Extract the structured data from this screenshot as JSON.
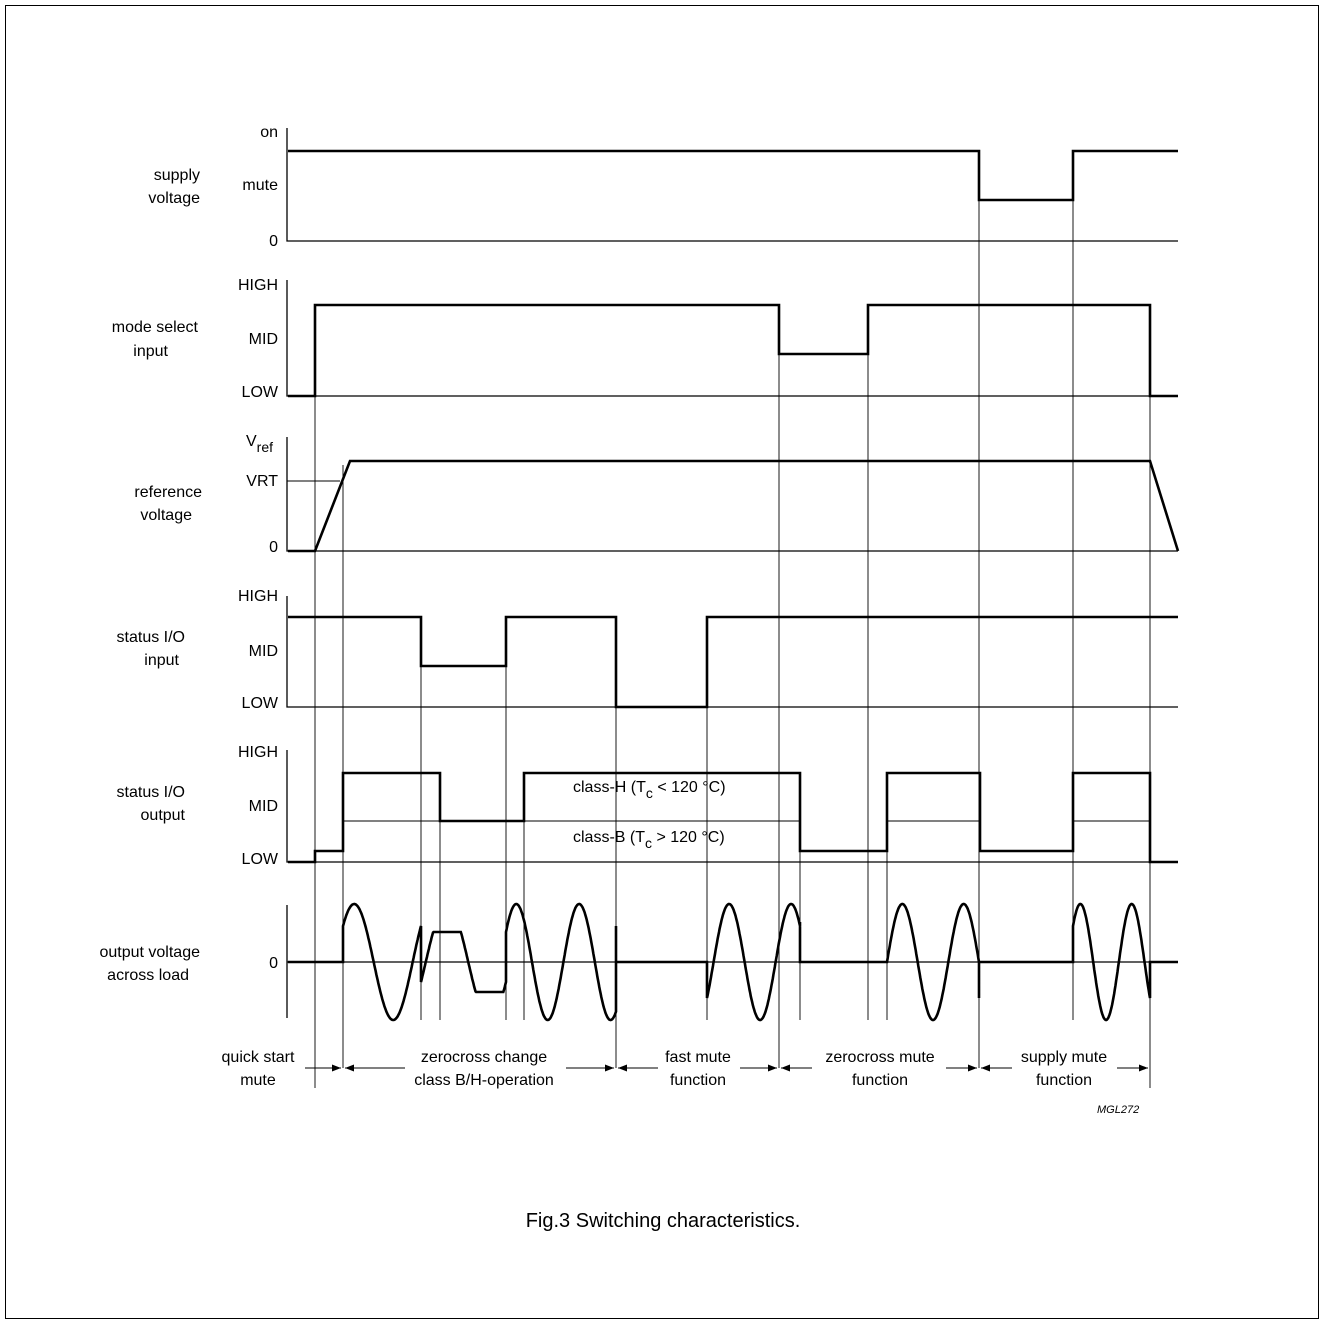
{
  "figure": {
    "caption": "Fig.3  Switching characteristics.",
    "code": "MGL272"
  },
  "rows": {
    "supply": {
      "label_lines": [
        "supply",
        "voltage"
      ],
      "levels": {
        "on": "on",
        "mute": "mute",
        "zero": "0"
      }
    },
    "mode": {
      "label_lines": [
        "mode select",
        "input"
      ],
      "levels": {
        "high": "HIGH",
        "mid": "MID",
        "low": "LOW"
      }
    },
    "ref": {
      "label_lines": [
        "reference",
        "voltage"
      ],
      "levels": {
        "vref_main": "V",
        "vref_sub": "ref",
        "vrt": "VRT",
        "zero": "0"
      }
    },
    "status_in": {
      "label_lines": [
        "status I/O",
        "input"
      ],
      "levels": {
        "high": "HIGH",
        "mid": "MID",
        "low": "LOW"
      }
    },
    "status_out": {
      "label_lines": [
        "status I/O",
        "output"
      ],
      "levels": {
        "high": "HIGH",
        "mid": "MID",
        "low": "LOW"
      },
      "annotations": {
        "classH": {
          "pre": "class-H (T",
          "sub": "c",
          "post": " < 120 °C)"
        },
        "classB": {
          "pre": "class-B (T",
          "sub": "c",
          "post": " > 120 °C)"
        }
      }
    },
    "output": {
      "label_lines": [
        "output voltage",
        "across load"
      ],
      "levels": {
        "zero": "0"
      }
    }
  },
  "phases": [
    {
      "lines": [
        "quick start",
        "mute"
      ]
    },
    {
      "lines": [
        "zerocross change",
        "class B/H-operation"
      ]
    },
    {
      "lines": [
        "fast mute",
        "function"
      ]
    },
    {
      "lines": [
        "zerocross mute",
        "function"
      ]
    },
    {
      "lines": [
        "supply mute",
        "function"
      ]
    }
  ]
}
